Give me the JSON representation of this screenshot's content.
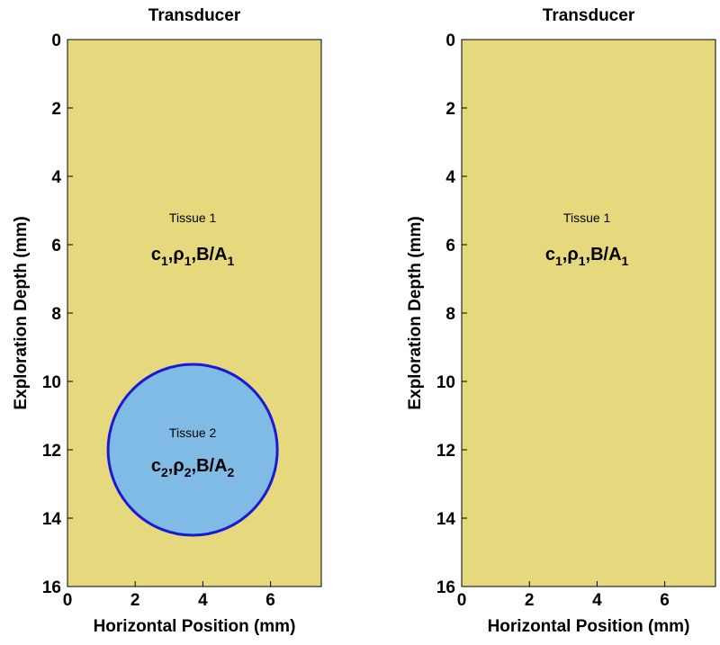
{
  "panels": [
    {
      "title": "Transducer",
      "xlabel": "Horizontal Position (mm)",
      "ylabel": "Exploration Depth (mm)",
      "xlim": [
        0,
        7.5
      ],
      "ylim": [
        0,
        16
      ],
      "xticks": [
        0,
        2,
        4,
        6
      ],
      "yticks": [
        0,
        2,
        4,
        6,
        8,
        10,
        12,
        14,
        16
      ],
      "background_color": "#e6d87c",
      "tissue1": {
        "name": "Tissue 1",
        "label_x": 3.7,
        "label_y": 5.4,
        "props": [
          {
            "sym": "c",
            "sub": "1"
          },
          {
            "sym": "ρ",
            "sub": "1"
          },
          {
            "sym": "B/A",
            "sub": "1"
          }
        ]
      },
      "inclusion": {
        "center_x": 3.7,
        "center_y": 12,
        "radius": 2.5,
        "fill_color": "#7fbbe4",
        "stroke_color": "#1a1ad6",
        "name": "Tissue 2",
        "props": [
          {
            "sym": "c",
            "sub": "2"
          },
          {
            "sym": "ρ",
            "sub": "2"
          },
          {
            "sym": "B/A",
            "sub": "2"
          }
        ]
      }
    },
    {
      "title": "Transducer",
      "xlabel": "Horizontal Position (mm)",
      "ylabel": "Exploration Depth (mm)",
      "xlim": [
        0,
        7.5
      ],
      "ylim": [
        0,
        16
      ],
      "xticks": [
        0,
        2,
        4,
        6
      ],
      "yticks": [
        0,
        2,
        4,
        6,
        8,
        10,
        12,
        14,
        16
      ],
      "background_color": "#e6d87c",
      "tissue1": {
        "name": "Tissue 1",
        "label_x": 3.7,
        "label_y": 5.4,
        "props": [
          {
            "sym": "c",
            "sub": "1"
          },
          {
            "sym": "ρ",
            "sub": "1"
          },
          {
            "sym": "B/A",
            "sub": "1"
          }
        ]
      }
    }
  ]
}
